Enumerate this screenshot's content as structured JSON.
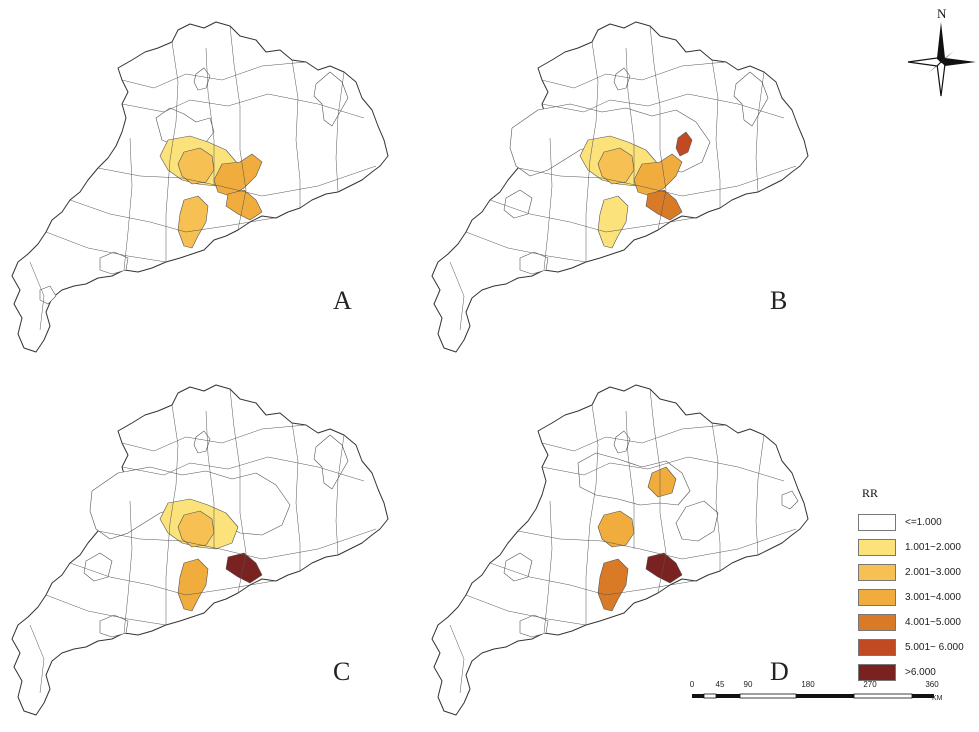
{
  "panels": [
    {
      "letter": "A",
      "regions": [
        {
          "cls": 1,
          "name": "north-small"
        },
        {
          "cls": 1,
          "name": "northeast"
        },
        {
          "cls": 1,
          "name": "central-west"
        },
        {
          "cls": 2,
          "name": "central"
        },
        {
          "cls": 3,
          "name": "core"
        },
        {
          "cls": 4,
          "name": "east-arm"
        },
        {
          "cls": 4,
          "name": "south-delta"
        },
        {
          "cls": 3,
          "name": "lower-delta"
        },
        {
          "cls": 1,
          "name": "southwest-coast"
        },
        {
          "cls": 1,
          "name": "west-coast"
        }
      ]
    },
    {
      "letter": "B",
      "regions": [
        {
          "cls": 1,
          "name": "north-small"
        },
        {
          "cls": 1,
          "name": "northeast"
        },
        {
          "cls": 1,
          "name": "wide-central"
        },
        {
          "cls": 1,
          "name": "west-blob"
        },
        {
          "cls": 2,
          "name": "central"
        },
        {
          "cls": 3,
          "name": "core"
        },
        {
          "cls": 4,
          "name": "east-arm"
        },
        {
          "cls": 6,
          "name": "north-spot"
        },
        {
          "cls": 5,
          "name": "south-delta"
        },
        {
          "cls": 2,
          "name": "lower-delta"
        },
        {
          "cls": 1,
          "name": "southwest-coast"
        }
      ]
    },
    {
      "letter": "C",
      "regions": [
        {
          "cls": 1,
          "name": "north-small"
        },
        {
          "cls": 1,
          "name": "northeast"
        },
        {
          "cls": 1,
          "name": "wide-central"
        },
        {
          "cls": 1,
          "name": "west-blob"
        },
        {
          "cls": 2,
          "name": "central"
        },
        {
          "cls": 3,
          "name": "core"
        },
        {
          "cls": 4,
          "name": "lower-delta"
        },
        {
          "cls": 7,
          "name": "south-delta"
        },
        {
          "cls": 1,
          "name": "southwest-coast"
        }
      ]
    },
    {
      "letter": "D",
      "regions": [
        {
          "cls": 1,
          "name": "north-small"
        },
        {
          "cls": 1,
          "name": "central-north"
        },
        {
          "cls": 1,
          "name": "east-blob"
        },
        {
          "cls": 1,
          "name": "west-blob"
        },
        {
          "cls": 4,
          "name": "core"
        },
        {
          "cls": 4,
          "name": "north-east-spot"
        },
        {
          "cls": 5,
          "name": "lower-delta"
        },
        {
          "cls": 7,
          "name": "south-delta"
        },
        {
          "cls": 1,
          "name": "southwest-coast"
        },
        {
          "cls": 1,
          "name": "east-coast"
        }
      ]
    }
  ],
  "legend": {
    "title": "RR",
    "items": [
      {
        "label": "<=1.000",
        "color": "#ffffff"
      },
      {
        "label": "1.001~2.000",
        "color": "#fbe27a"
      },
      {
        "label": "2.001~3.000",
        "color": "#f6c052"
      },
      {
        "label": "3.001~4.000",
        "color": "#f0ac3d"
      },
      {
        "label": "4.001~5.000",
        "color": "#d97b26"
      },
      {
        "label": "5.001~ 6.000",
        "color": "#c14a22"
      },
      {
        "label": ">6.000",
        "color": "#7a2221"
      }
    ]
  },
  "north_arrow": {
    "label": "N"
  },
  "scale_bar": {
    "ticks": [
      "0",
      "45",
      "90",
      "180",
      "270",
      "360"
    ],
    "unit": "KM"
  }
}
